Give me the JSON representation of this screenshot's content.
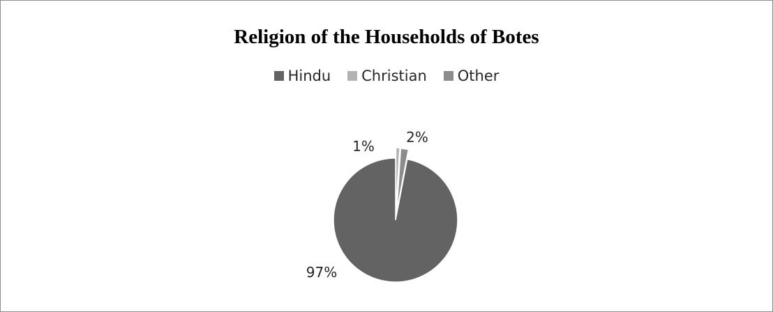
{
  "chart_data": {
    "type": "pie",
    "title": "Religion of the Households of Botes",
    "categories": [
      "Hindu",
      "Christian",
      "Other"
    ],
    "values": [
      97,
      1,
      2
    ],
    "data_labels": [
      "97%",
      "1%",
      "2%"
    ],
    "colors": [
      "#636363",
      "#b3b3b3",
      "#8c8c8c"
    ],
    "slice_stroke": "#ffffff",
    "legend_position": "top",
    "exploded_slices": [
      "Christian",
      "Other"
    ]
  }
}
